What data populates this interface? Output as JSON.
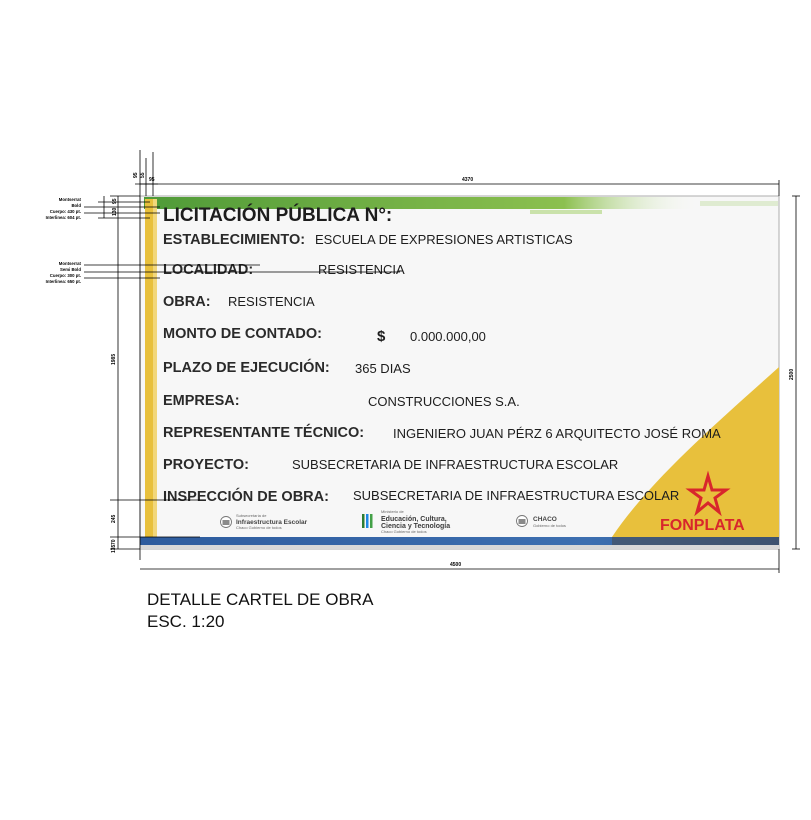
{
  "sign": {
    "title": "LICITACIÓN PÚBLICA N°:",
    "rows": [
      {
        "label": "ESTABLECIMIENTO:",
        "value": "ESCUELA DE EXPRESIONES ARTISTICAS"
      },
      {
        "label": "LOCALIDAD:",
        "value": "RESISTENCIA"
      },
      {
        "label": "OBRA:",
        "value": "RESISTENCIA"
      },
      {
        "label": "MONTO DE CONTADO:",
        "value": "0.000.000,00",
        "prefix": "$"
      },
      {
        "label": "PLAZO DE EJECUCIÓN:",
        "value": "365 DIAS"
      },
      {
        "label": "EMPRESA:",
        "value": "CONSTRUCCIONES S.A."
      },
      {
        "label": "REPRESENTANTE TÉCNICO:",
        "value": "INGENIERO JUAN PÉRZ 6 ARQUITECTO JOSÉ ROMA"
      },
      {
        "label": "PROYECTO:",
        "value": "SUBSECRETARIA DE INFRAESTRUCTURA ESCOLAR"
      },
      {
        "label": "INSPECCIÓN DE OBRA:",
        "value": "SUBSECRETARIA DE INFRAESTRUCTURA ESCOLAR"
      }
    ],
    "logos": {
      "infra": {
        "small": "Subsecretaría de",
        "big": "Infraestructura Escolar",
        "sub": "Chaco Gobierno de todos"
      },
      "edu": {
        "small": "Ministerio de",
        "line1": "Educación, Cultura,",
        "line2": "Ciencia y Tecnología",
        "sub": "Chaco Gobierno de todos"
      },
      "chaco": {
        "big": "CHACO",
        "sub": "Gobierno de todos"
      },
      "brand": "FONPLATA"
    },
    "colors": {
      "green": "#5a9e3a",
      "yellow": "#e8c03c",
      "blue": "#2e5c9e",
      "red": "#d8262c"
    }
  },
  "dimensions": {
    "width_top": "4370",
    "width_bottom": "4500",
    "height_right": "2500",
    "height_left": "1985",
    "lower_band": "245",
    "bottom_strip": "70",
    "bottom_small": "135",
    "top_small_a": "95",
    "top_small_b": "55",
    "top_small_c": "95",
    "top_left_small": "95",
    "top_left_mid": "130"
  },
  "notes": {
    "title_font": [
      "Montserrat",
      "Bold",
      "Cuerpo: 430 pt.",
      "Interlinea: 604 pt."
    ],
    "row_font": [
      "Montserrat",
      "Semi Bold",
      "Cuerpo: 300 pt.",
      "Interlinea: 650 pt."
    ]
  },
  "caption": {
    "line1": "DETALLE CARTEL DE OBRA",
    "line2": "ESC. 1:20"
  }
}
